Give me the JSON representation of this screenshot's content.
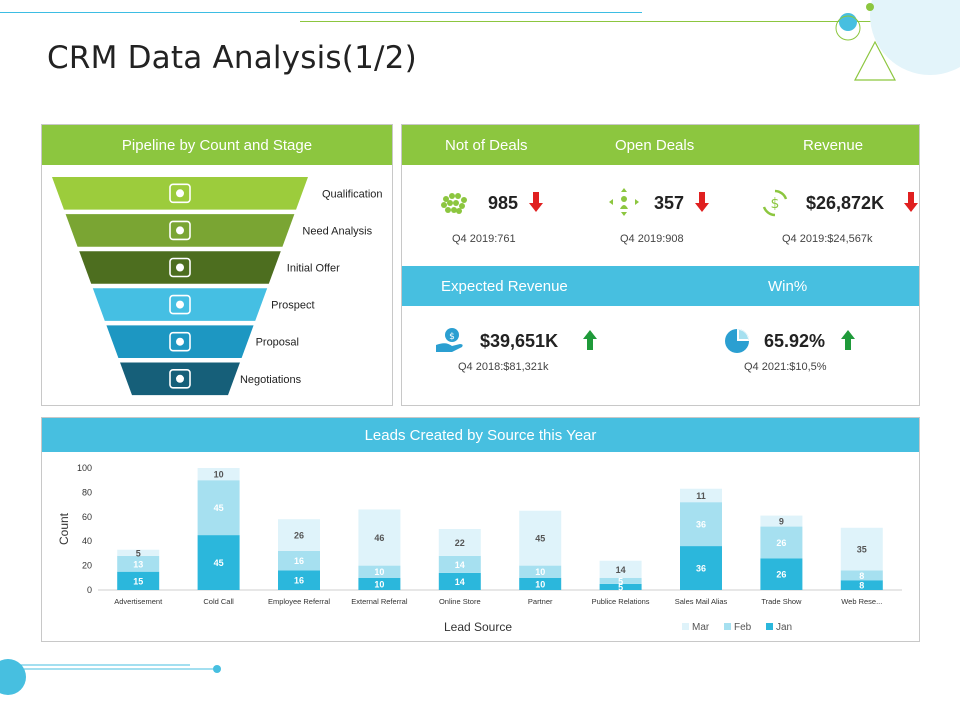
{
  "title": "CRM Data Analysis(1/2)",
  "colors": {
    "green": "#8cc63f",
    "blue": "#47bfe0",
    "jan": "#2bb7dc",
    "feb": "#a6e0f0",
    "mar": "#dff3fa",
    "down": "#e02020",
    "up": "#1f9a3a"
  },
  "pipeline": {
    "header": "Pipeline by Count and Stage",
    "stages": [
      {
        "label": "Qualification",
        "icon": "document-icon",
        "color": "#9ccc3c"
      },
      {
        "label": "Need Analysis",
        "icon": "magnifier-chart-icon",
        "color": "#7aa533"
      },
      {
        "label": "Initial Offer",
        "icon": "line-chart-icon",
        "color": "#4d6e1f"
      },
      {
        "label": "Prospect",
        "icon": "people-icon",
        "color": "#45bfe3"
      },
      {
        "label": "Proposal",
        "icon": "user-check-icon",
        "color": "#1d97c2"
      },
      {
        "label": "Negotiations",
        "icon": "team-icon",
        "color": "#165f79"
      }
    ]
  },
  "kpis": {
    "headers": [
      "Not of Deals",
      "Open Deals",
      "Revenue"
    ],
    "items": [
      {
        "value": "985",
        "sub": "Q4 2019:761",
        "trend": "down",
        "icon": "cluster-icon"
      },
      {
        "value": "357",
        "sub": "Q4 2019:908",
        "trend": "down",
        "icon": "arrows-person-icon"
      },
      {
        "value": "$26,872K",
        "sub": "Q4 2019:$24,567k",
        "trend": "down",
        "icon": "dollar-cycle-icon"
      }
    ],
    "headers2": [
      "Expected Revenue",
      "Win%"
    ],
    "items2": [
      {
        "value": "$39,651K",
        "sub": "Q4 2018:$81,321k",
        "trend": "up",
        "icon": "money-hand-icon"
      },
      {
        "value": "65.92%",
        "sub": "Q4 2021:$10,5%",
        "trend": "up",
        "icon": "pie-icon"
      }
    ]
  },
  "leads": {
    "header": "Leads Created by Source this Year"
  },
  "chart_data": {
    "type": "bar",
    "stacked": true,
    "categories": [
      "Advertisement",
      "Cold Call",
      "Employee Referral",
      "External Referral",
      "Online Store",
      "Partner",
      "Publice Relations",
      "Sales Mail Alias",
      "Trade Show",
      "Web Rese..."
    ],
    "series": [
      {
        "name": "Jan",
        "values": [
          15,
          45,
          16,
          10,
          14,
          10,
          5,
          36,
          26,
          8
        ]
      },
      {
        "name": "Feb",
        "values": [
          13,
          45,
          16,
          10,
          14,
          10,
          5,
          36,
          26,
          8
        ]
      },
      {
        "name": "Mar",
        "values": [
          5,
          10,
          26,
          46,
          22,
          45,
          14,
          11,
          9,
          35
        ]
      }
    ],
    "xlabel": "Lead Source",
    "ylabel": "Count",
    "ylim": [
      0,
      100
    ],
    "yticks": [
      0,
      20,
      40,
      60,
      80,
      100
    ],
    "legend": "bottom-right",
    "legend_order": [
      "Mar",
      "Feb",
      "Jan"
    ]
  }
}
